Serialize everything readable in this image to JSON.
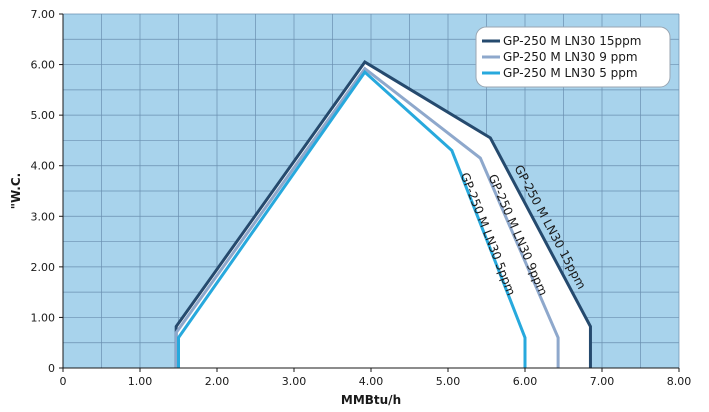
{
  "chart_data": {
    "type": "area",
    "xlabel": "MMBtu/h",
    "ylabel": "\"W.C.",
    "xlim": [
      0,
      8
    ],
    "ylim": [
      0,
      7
    ],
    "grid": true,
    "legend_position": "top-right",
    "x_ticks": [
      "0",
      "1.00",
      "2.00",
      "3.00",
      "4.00",
      "5.00",
      "6.00",
      "7.00",
      "8.00"
    ],
    "y_ticks": [
      "0",
      "1.00",
      "2.00",
      "3.00",
      "4.00",
      "5.00",
      "6.00",
      "7.00"
    ],
    "series": [
      {
        "name": "GP-250 M LN30 15ppm",
        "label": "GP-250 M LN30 15ppm",
        "color": "#254a6e",
        "points": [
          [
            1.47,
            0
          ],
          [
            1.47,
            0.82
          ],
          [
            3.92,
            6.05
          ],
          [
            5.55,
            4.55
          ],
          [
            6.85,
            0.82
          ],
          [
            6.85,
            0
          ]
        ]
      },
      {
        "name": "GP-250 M LN30 9 ppm",
        "label": "GP-250 M LN30 9ppm",
        "color": "#8ea8cc",
        "points": [
          [
            1.47,
            0
          ],
          [
            1.47,
            0.7
          ],
          [
            3.92,
            5.92
          ],
          [
            5.42,
            4.15
          ],
          [
            6.43,
            0.6
          ],
          [
            6.43,
            0
          ]
        ]
      },
      {
        "name": "GP-250 M LN30 5 ppm",
        "label": "GP-250 M LN30 5ppm",
        "color": "#27a9dd",
        "points": [
          [
            1.5,
            0
          ],
          [
            1.5,
            0.6
          ],
          [
            3.92,
            5.85
          ],
          [
            5.05,
            4.3
          ],
          [
            6.0,
            0.6
          ],
          [
            6.0,
            0
          ]
        ]
      }
    ]
  },
  "style": {
    "background": "#a8d3ec",
    "inner_fill": "#ffffff",
    "grid_color": "#6a8fb0",
    "axis_color": "#1a1a1a"
  }
}
